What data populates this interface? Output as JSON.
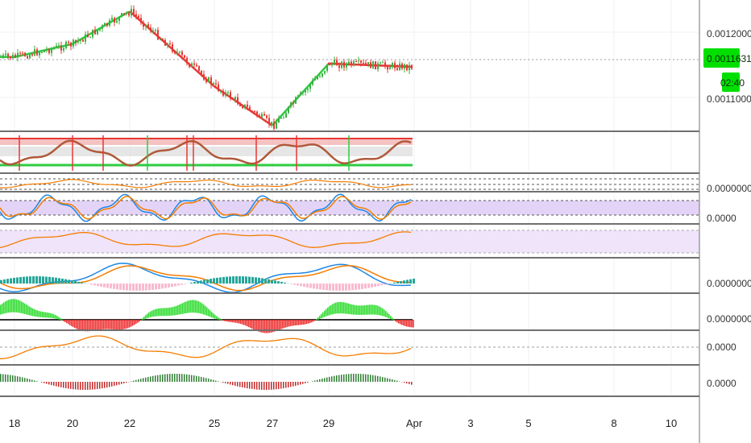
{
  "colors": {
    "background": "#ffffff",
    "grid": "#eef0f3",
    "separator": "#707070",
    "axis_text": "#222222",
    "candle_up": "#3cb043",
    "candle_down": "#e53935",
    "ma_red": "#e53935",
    "ma_green": "#2ecc40",
    "badge_bg": "#00e000",
    "orange": "#f57c00",
    "blue": "#1e88e5",
    "teal": "#26a69a",
    "pink": "#f8bbd0",
    "purple_band": "#e3d4f7",
    "lavender_band": "#efe4fa",
    "hist_green": "#33dd33",
    "hist_red": "#ee3333",
    "dotted": "#9e9e9e"
  },
  "price_axis": {
    "labels": [
      "0.0012000",
      "0.0011000"
    ],
    "current_price": "0.0011631",
    "countdown": "02:40"
  },
  "panel_labels": [
    "0.0000000",
    "0.0000",
    "0.0000000",
    "0.0000000",
    "0.0000",
    "0.0000"
  ],
  "time_axis": {
    "labels": [
      "18",
      "20",
      "22",
      "25",
      "27",
      "29",
      "Apr",
      "3",
      "5",
      "8",
      "10"
    ]
  },
  "chart_data": {
    "type": "line",
    "title": "",
    "xlabel": "",
    "ylabel": "",
    "x": [
      "18",
      "20",
      "22",
      "25",
      "27",
      "29",
      "Apr"
    ],
    "series": [
      {
        "values": [
          0.001185,
          0.001205,
          0.001255,
          0.00114,
          0.00108,
          0.001175,
          0.00117
        ]
      }
    ],
    "ylim": [
      0.001075,
      0.00126
    ],
    "grid": true,
    "legend": "none"
  }
}
